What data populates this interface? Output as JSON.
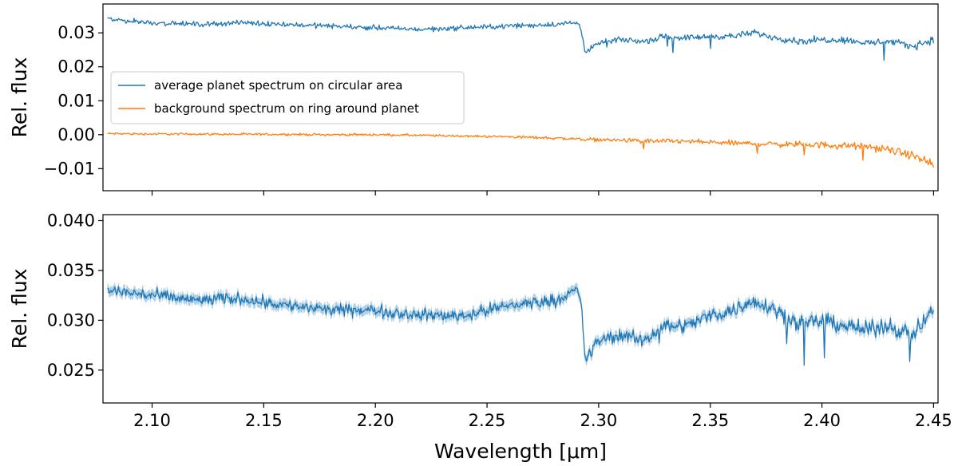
{
  "chart_data": [
    {
      "type": "line",
      "panel": "top",
      "ylabel": "Rel. flux",
      "xlim": [
        2.078,
        2.452
      ],
      "ylim": [
        -0.0165,
        0.0385
      ],
      "yticks": [
        -0.01,
        0.0,
        0.01,
        0.02,
        0.03
      ],
      "ytick_labels": [
        "−0.01",
        "0.00",
        "0.01",
        "0.02",
        "0.03"
      ],
      "legend_position": "center-left",
      "series": [
        {
          "name": "average planet spectrum on circular area",
          "color": "#1f77b4",
          "x": [
            2.08,
            2.1,
            2.12,
            2.14,
            2.16,
            2.18,
            2.2,
            2.22,
            2.24,
            2.26,
            2.28,
            2.29,
            2.292,
            2.294,
            2.3,
            2.31,
            2.32,
            2.33,
            2.34,
            2.35,
            2.36,
            2.37,
            2.38,
            2.39,
            2.4,
            2.41,
            2.42,
            2.43,
            2.44,
            2.45
          ],
          "y": [
            0.034,
            0.033,
            0.0325,
            0.033,
            0.0325,
            0.032,
            0.0315,
            0.031,
            0.0315,
            0.032,
            0.0325,
            0.033,
            0.032,
            0.024,
            0.027,
            0.028,
            0.0275,
            0.029,
            0.0285,
            0.029,
            0.029,
            0.03,
            0.0285,
            0.0275,
            0.028,
            0.028,
            0.027,
            0.0275,
            0.026,
            0.028
          ]
        },
        {
          "name": "background spectrum on ring around planet",
          "color": "#ff7f0e",
          "x": [
            2.08,
            2.1,
            2.12,
            2.14,
            2.16,
            2.18,
            2.2,
            2.22,
            2.24,
            2.26,
            2.28,
            2.3,
            2.32,
            2.34,
            2.36,
            2.38,
            2.4,
            2.42,
            2.43,
            2.44,
            2.45
          ],
          "y": [
            0.0003,
            0.0002,
            0.0002,
            0.0001,
            0.0001,
            0.0,
            0.0,
            -0.0002,
            -0.0004,
            -0.0006,
            -0.001,
            -0.0015,
            -0.0018,
            -0.002,
            -0.0025,
            -0.0028,
            -0.003,
            -0.0035,
            -0.0045,
            -0.006,
            -0.009
          ]
        }
      ]
    },
    {
      "type": "line",
      "panel": "bottom",
      "xlabel": "Wavelength [μm]",
      "ylabel": "Rel. flux",
      "xlim": [
        2.078,
        2.452
      ],
      "ylim": [
        0.0217,
        0.0406
      ],
      "xticks": [
        2.1,
        2.15,
        2.2,
        2.25,
        2.3,
        2.35,
        2.4,
        2.45
      ],
      "xtick_labels": [
        "2.10",
        "2.15",
        "2.20",
        "2.25",
        "2.30",
        "2.35",
        "2.40",
        "2.45"
      ],
      "yticks": [
        0.025,
        0.03,
        0.035,
        0.04
      ],
      "ytick_labels": [
        "0.025",
        "0.030",
        "0.035",
        "0.040"
      ],
      "series": [
        {
          "color": "#1f77b4",
          "error_band": true,
          "x": [
            2.08,
            2.1,
            2.12,
            2.14,
            2.16,
            2.18,
            2.2,
            2.22,
            2.24,
            2.26,
            2.28,
            2.29,
            2.292,
            2.294,
            2.3,
            2.31,
            2.32,
            2.33,
            2.34,
            2.35,
            2.36,
            2.37,
            2.38,
            2.39,
            2.4,
            2.41,
            2.42,
            2.43,
            2.44,
            2.45
          ],
          "y": [
            0.033,
            0.0325,
            0.032,
            0.0322,
            0.0315,
            0.031,
            0.031,
            0.0305,
            0.0305,
            0.0315,
            0.032,
            0.033,
            0.032,
            0.026,
            0.028,
            0.0285,
            0.028,
            0.0295,
            0.0295,
            0.0305,
            0.031,
            0.032,
            0.031,
            0.0295,
            0.03,
            0.0295,
            0.029,
            0.0295,
            0.0285,
            0.031
          ]
        }
      ]
    }
  ]
}
